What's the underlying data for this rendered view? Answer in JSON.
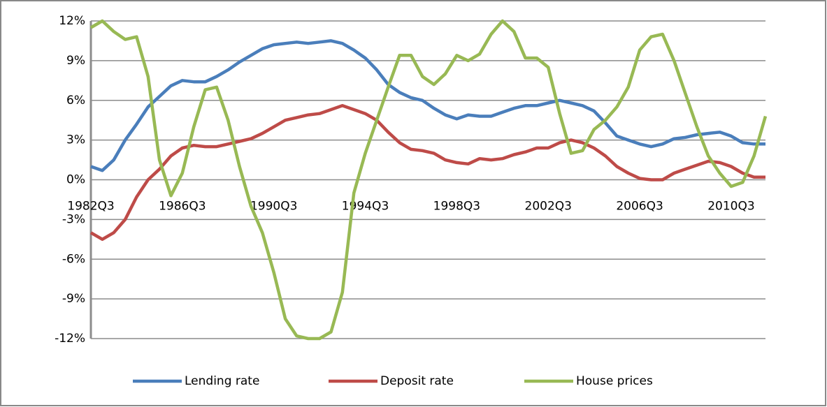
{
  "chart_data": {
    "type": "line",
    "categories": [
      "1982Q3",
      null,
      null,
      null,
      null,
      null,
      null,
      null,
      "1986Q3",
      null,
      null,
      null,
      null,
      null,
      null,
      null,
      "1990Q3",
      null,
      null,
      null,
      null,
      null,
      null,
      null,
      "1994Q3",
      null,
      null,
      null,
      null,
      null,
      null,
      null,
      "1998Q3",
      null,
      null,
      null,
      null,
      null,
      null,
      null,
      "2002Q3",
      null,
      null,
      null,
      null,
      null,
      null,
      null,
      "2006Q3",
      null,
      null,
      null,
      null,
      null,
      null,
      null,
      "2010Q3",
      null,
      null,
      null
    ],
    "series": [
      {
        "name": "Lending rate",
        "color": "#4a7ebb",
        "values": [
          1.0,
          0.7,
          1.5,
          3.0,
          4.2,
          5.5,
          6.3,
          7.1,
          7.5,
          7.4,
          7.4,
          7.8,
          8.3,
          8.9,
          9.4,
          9.9,
          10.2,
          10.3,
          10.4,
          10.3,
          10.4,
          10.5,
          10.3,
          9.8,
          9.2,
          8.3,
          7.2,
          6.6,
          6.2,
          6.0,
          5.4,
          4.9,
          4.6,
          4.9,
          4.8,
          4.8,
          5.1,
          5.4,
          5.6,
          5.6,
          5.8,
          6.0,
          5.8,
          5.6,
          5.2,
          4.3,
          3.3,
          3.0,
          2.7,
          2.5,
          2.7,
          3.1,
          3.2,
          3.4,
          3.5,
          3.6,
          3.3,
          2.8,
          2.7,
          2.7
        ]
      },
      {
        "name": "Deposit rate",
        "color": "#be4b48",
        "values": [
          -4.0,
          -4.5,
          -4.0,
          -3.0,
          -1.3,
          0.0,
          0.8,
          1.8,
          2.4,
          2.6,
          2.5,
          2.5,
          2.7,
          2.9,
          3.1,
          3.5,
          4.0,
          4.5,
          4.7,
          4.9,
          5.0,
          5.3,
          5.6,
          5.3,
          5.0,
          4.5,
          3.6,
          2.8,
          2.3,
          2.2,
          2.0,
          1.5,
          1.3,
          1.2,
          1.6,
          1.5,
          1.6,
          1.9,
          2.1,
          2.4,
          2.4,
          2.8,
          3.0,
          2.8,
          2.4,
          1.8,
          1.0,
          0.5,
          0.1,
          0.0,
          0.0,
          0.5,
          0.8,
          1.1,
          1.4,
          1.3,
          1.0,
          0.5,
          0.2,
          0.2
        ]
      },
      {
        "name": "House prices",
        "color": "#98b954",
        "values": [
          11.5,
          12.0,
          11.2,
          10.6,
          10.8,
          7.8,
          1.5,
          -1.2,
          0.5,
          4.0,
          6.8,
          7.0,
          4.5,
          1.0,
          -2.0,
          -4.0,
          -7.0,
          -10.5,
          -11.8,
          -12.0,
          -12.0,
          -11.5,
          -8.5,
          -1.0,
          2.0,
          4.5,
          7.0,
          9.4,
          9.4,
          7.8,
          7.2,
          8.0,
          9.4,
          9.0,
          9.5,
          11.0,
          12.0,
          11.2,
          9.2,
          9.2,
          8.5,
          5.0,
          2.0,
          2.2,
          3.8,
          4.5,
          5.5,
          7.0,
          9.8,
          10.8,
          11.0,
          9.0,
          6.5,
          4.0,
          1.8,
          0.5,
          -0.5,
          -0.2,
          1.8,
          4.8
        ]
      }
    ],
    "ylim": [
      -12,
      12
    ],
    "yticks": [
      {
        "value": -12,
        "label": "-12%"
      },
      {
        "value": -9,
        "label": "-9%"
      },
      {
        "value": -6,
        "label": "-6%"
      },
      {
        "value": -3,
        "label": "-3%"
      },
      {
        "value": 0,
        "label": "0%"
      },
      {
        "value": 3,
        "label": "3%"
      },
      {
        "value": 6,
        "label": "6%"
      },
      {
        "value": 9,
        "label": "9%"
      },
      {
        "value": 12,
        "label": "12%"
      }
    ],
    "grid": true,
    "legend": "bottom"
  }
}
